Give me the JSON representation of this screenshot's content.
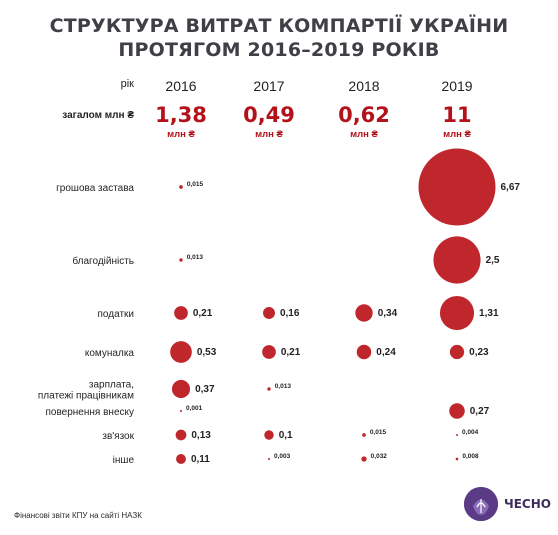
{
  "title_lines": [
    "СТРУКТУРА ВИТРАТ КОМПАРТІЇ УКРАЇНИ",
    "ПРОТЯГОМ 2016–2019 РОКІВ"
  ],
  "source": "Фінансові звіти КПУ на сайті НАЗК",
  "logo": {
    "text": "ЧЕСНО",
    "icon": "chesno-logo-icon"
  },
  "colors": {
    "bubble": "#c0272d",
    "total": "#b3121b",
    "title": "#3f3f46"
  },
  "chart_data": {
    "type": "bubble",
    "title": "СТРУКТУРА ВИТРАТ КОМПАРТІЇ УКРАЇНИ ПРОТЯГОМ 2016–2019 РОКІВ",
    "year_header": "рік",
    "years": [
      "2016",
      "2017",
      "2018",
      "2019"
    ],
    "totals_header": "загалом млн ₴",
    "totals": [
      "1,38",
      "0,49",
      "0,62",
      "11"
    ],
    "totals_unit": "млн ₴",
    "categories": [
      {
        "label": [
          "грошова застава"
        ],
        "values": [
          0.015,
          null,
          null,
          6.67
        ],
        "labels": [
          "0,015",
          "",
          "",
          "6,67"
        ]
      },
      {
        "label": [
          "благодійність"
        ],
        "values": [
          0.013,
          null,
          null,
          2.5
        ],
        "labels": [
          "0,013",
          "",
          "",
          "2,5"
        ]
      },
      {
        "label": [
          "податки"
        ],
        "values": [
          0.21,
          0.16,
          0.34,
          1.31
        ],
        "labels": [
          "0,21",
          "0,16",
          "0,34",
          "1,31"
        ]
      },
      {
        "label": [
          "комуналка"
        ],
        "values": [
          0.53,
          0.21,
          0.24,
          0.23
        ],
        "labels": [
          "0,53",
          "0,21",
          "0,24",
          "0,23"
        ]
      },
      {
        "label": [
          "зарплата,",
          "платежі працівникам"
        ],
        "values": [
          0.37,
          0.013,
          null,
          null
        ],
        "labels": [
          "0,37",
          "0,013",
          "",
          ""
        ]
      },
      {
        "label": [
          "повернення внеску"
        ],
        "values": [
          0.001,
          null,
          null,
          0.27
        ],
        "labels": [
          "0,001",
          "",
          "",
          "0,27"
        ]
      },
      {
        "label": [
          "зв'язок"
        ],
        "values": [
          0.13,
          0.1,
          0.015,
          0.004
        ],
        "labels": [
          "0,13",
          "0,1",
          "0,015",
          "0,004"
        ]
      },
      {
        "label": [
          "інше"
        ],
        "values": [
          0.11,
          0.003,
          0.032,
          0.008
        ],
        "labels": [
          "0,11",
          "0,003",
          "0,032",
          "0,008"
        ]
      }
    ]
  }
}
